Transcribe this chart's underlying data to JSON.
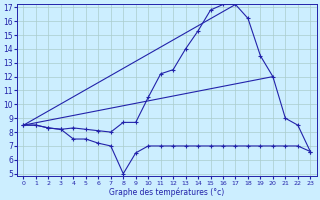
{
  "title": "Graphe des températures (°c)",
  "bg_color": "#cceeff",
  "line_color": "#2222aa",
  "grid_color": "#aacccc",
  "ylim_min": 5,
  "ylim_max": 17,
  "xlim_min": 0,
  "xlim_max": 23,
  "yticks": [
    5,
    6,
    7,
    8,
    9,
    10,
    11,
    12,
    13,
    14,
    15,
    16,
    17
  ],
  "xticks": [
    0,
    1,
    2,
    3,
    4,
    5,
    6,
    7,
    8,
    9,
    10,
    11,
    12,
    13,
    14,
    15,
    16,
    17,
    18,
    19,
    20,
    21,
    22,
    23
  ],
  "line1_x": [
    0,
    1,
    2,
    3,
    4,
    5,
    6,
    7,
    8,
    9,
    10,
    11,
    12,
    13,
    14,
    15,
    16,
    17,
    18,
    19,
    20,
    21,
    22,
    23
  ],
  "line1_y": [
    8.5,
    8.5,
    8.3,
    8.2,
    8.3,
    8.2,
    8.1,
    8.0,
    8.7,
    8.7,
    10.5,
    12.2,
    12.5,
    14.0,
    15.3,
    16.8,
    17.2,
    17.2,
    16.2,
    13.5,
    12.0,
    9.0,
    8.5,
    6.6
  ],
  "line2_x": [
    0,
    17
  ],
  "line2_y": [
    8.5,
    17.2
  ],
  "line3_x": [
    0,
    20
  ],
  "line3_y": [
    8.5,
    12.0
  ],
  "line4_x": [
    0,
    1,
    2,
    3,
    4,
    5,
    6,
    7,
    8,
    9,
    10,
    11,
    12,
    13,
    14,
    15,
    16,
    17,
    18,
    19,
    20,
    21,
    22,
    23
  ],
  "line4_y": [
    8.5,
    8.5,
    8.3,
    8.2,
    7.5,
    7.5,
    7.2,
    7.0,
    5.0,
    6.5,
    7.0,
    7.0,
    7.0,
    7.0,
    7.0,
    7.0,
    7.0,
    7.0,
    7.0,
    7.0,
    7.0,
    7.0,
    7.0,
    6.6
  ]
}
